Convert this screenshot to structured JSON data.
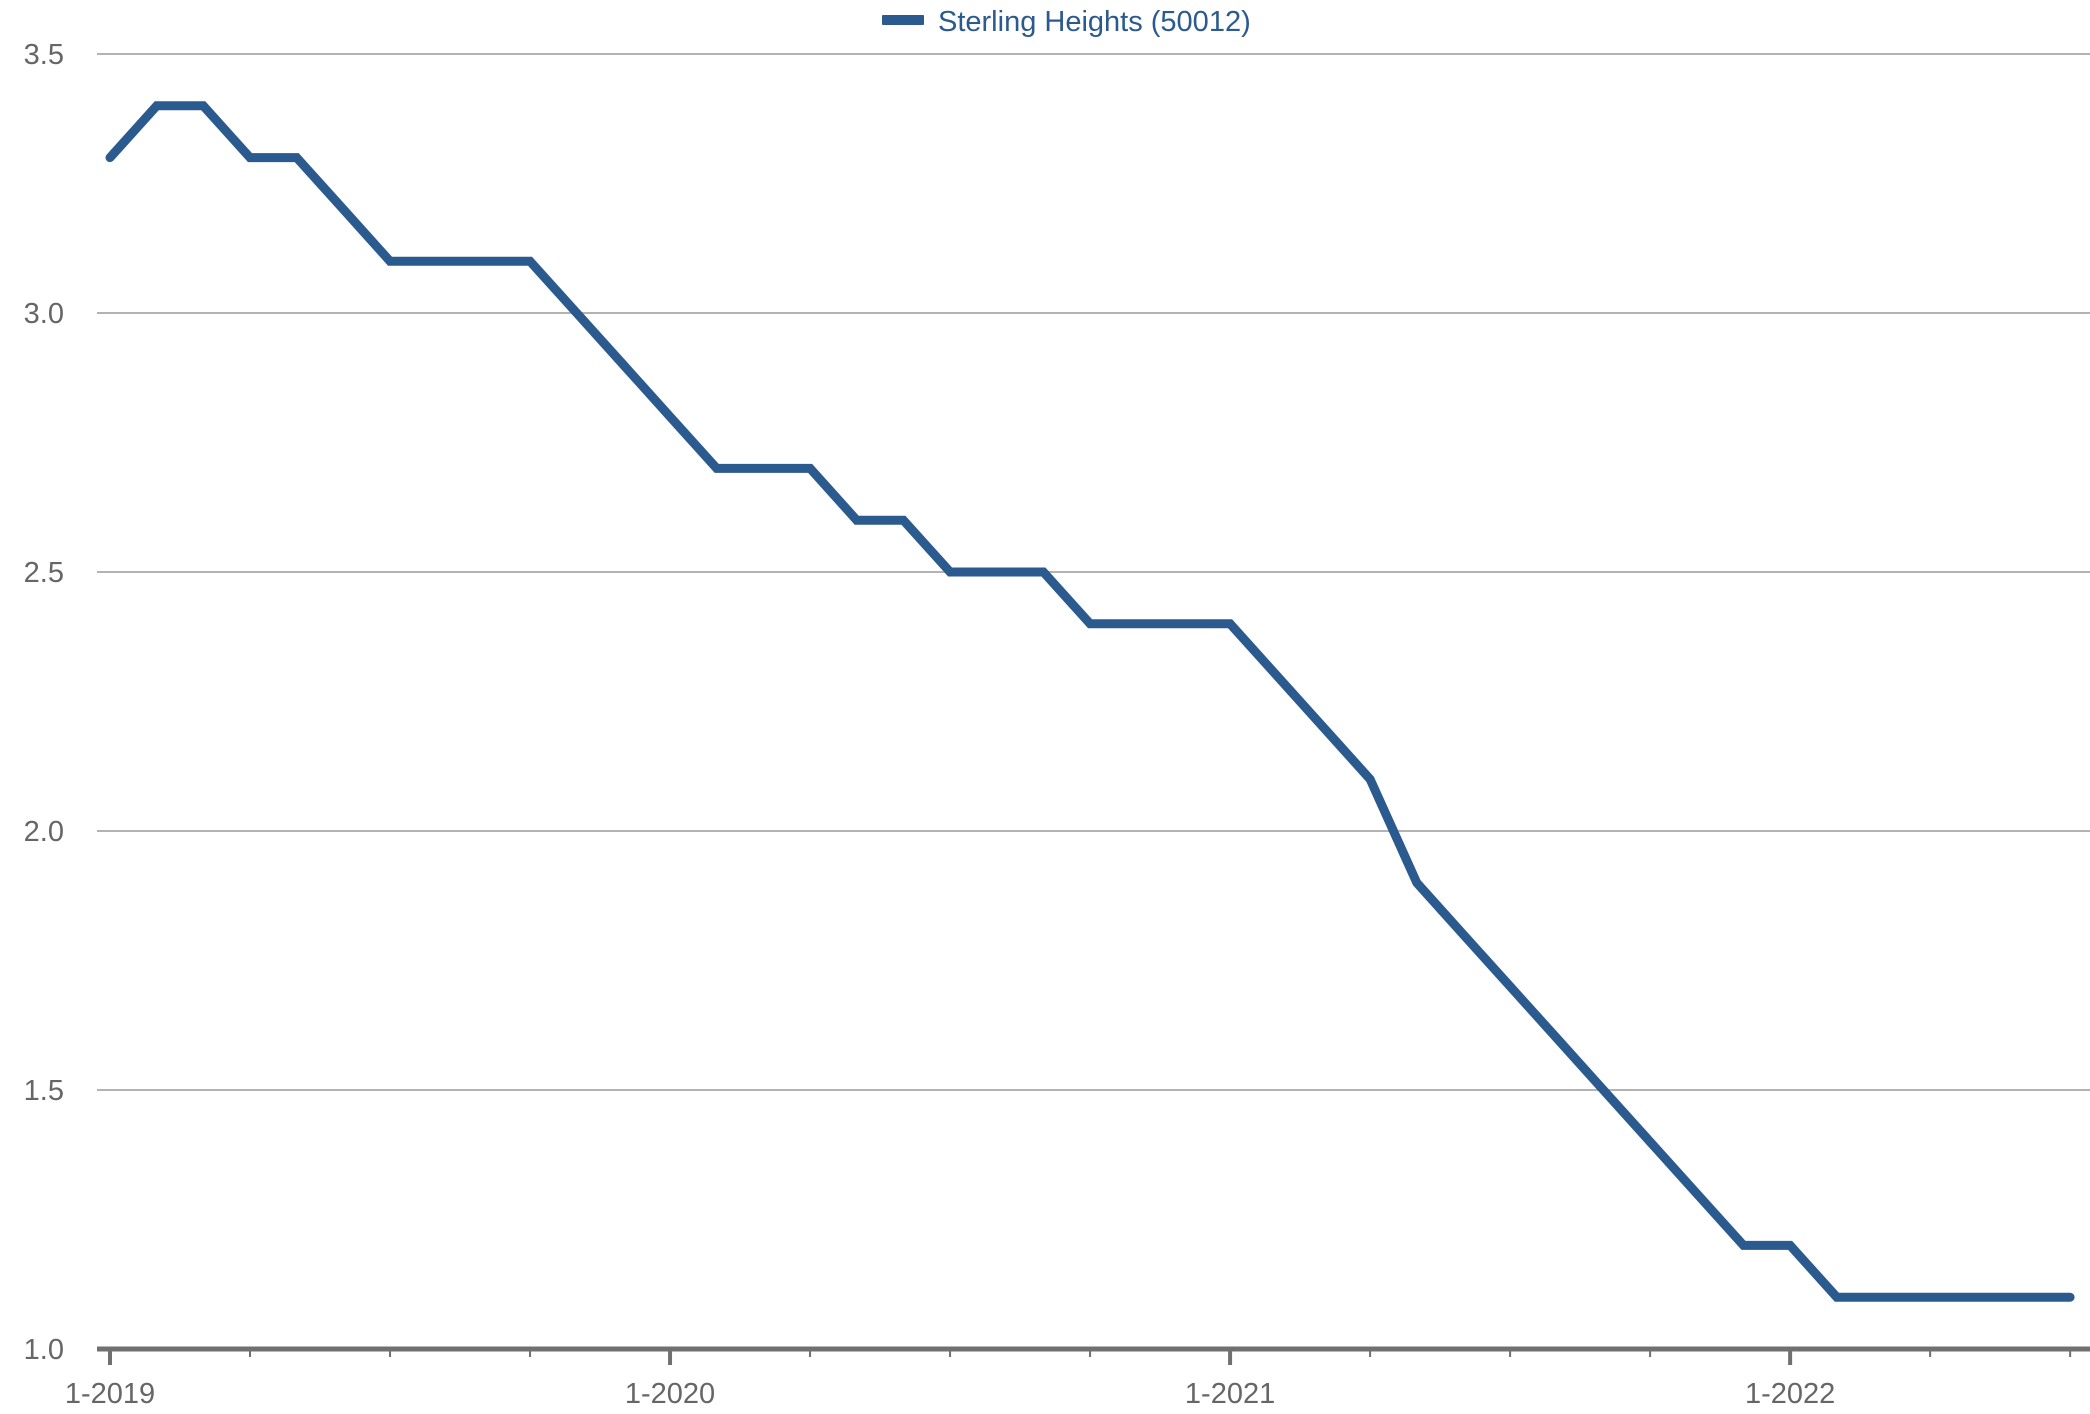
{
  "colors": {
    "series": "#2b5a8e",
    "grid": "#b3b3b3",
    "axis": "#707070",
    "tick_text": "#666666"
  },
  "chart_data": {
    "type": "line",
    "title": "",
    "xlabel": "",
    "ylabel": "",
    "ylim": [
      1.0,
      3.5
    ],
    "xlim": [
      "2019-01",
      "2022-07"
    ],
    "grid": true,
    "legend_position": "top-center",
    "y_ticks": [
      "1.0",
      "1.5",
      "2.0",
      "2.5",
      "3.0",
      "3.5"
    ],
    "x_ticks": [
      {
        "label": "1-2019",
        "x": "2019-01"
      },
      {
        "label": "1-2020",
        "x": "2020-01"
      },
      {
        "label": "1-2021",
        "x": "2021-01"
      },
      {
        "label": "1-2022",
        "x": "2022-01"
      }
    ],
    "series": [
      {
        "name": "Sterling Heights (50012)",
        "x": [
          "2019-01",
          "2019-02",
          "2019-03",
          "2019-04",
          "2019-05",
          "2019-06",
          "2019-07",
          "2019-08",
          "2019-09",
          "2019-10",
          "2019-11",
          "2019-12",
          "2020-01",
          "2020-02",
          "2020-03",
          "2020-04",
          "2020-05",
          "2020-06",
          "2020-07",
          "2020-08",
          "2020-09",
          "2020-10",
          "2020-11",
          "2020-12",
          "2021-01",
          "2021-02",
          "2021-03",
          "2021-04",
          "2021-05",
          "2021-06",
          "2021-07",
          "2021-08",
          "2021-09",
          "2021-10",
          "2021-11",
          "2021-12",
          "2022-01",
          "2022-02",
          "2022-03",
          "2022-04",
          "2022-05",
          "2022-06",
          "2022-07"
        ],
        "values": [
          3.3,
          3.4,
          3.4,
          3.3,
          3.3,
          3.2,
          3.1,
          3.1,
          3.1,
          3.1,
          3.0,
          2.9,
          2.8,
          2.7,
          2.7,
          2.7,
          2.6,
          2.6,
          2.5,
          2.5,
          2.5,
          2.4,
          2.4,
          2.4,
          2.4,
          2.3,
          2.2,
          2.1,
          1.9,
          1.8,
          1.7,
          1.6,
          1.5,
          1.4,
          1.3,
          1.2,
          1.2,
          1.1,
          1.1,
          1.1,
          1.1,
          1.1,
          1.1
        ]
      }
    ]
  }
}
